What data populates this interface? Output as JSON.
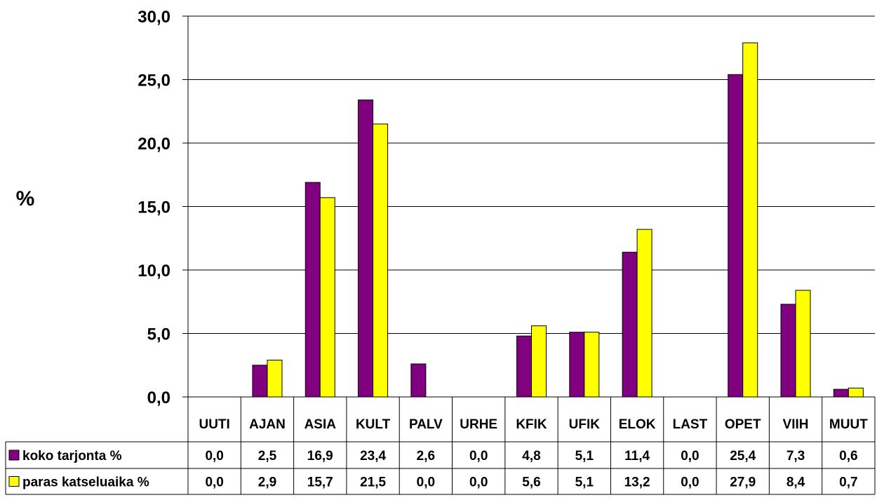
{
  "chart_data": {
    "type": "bar",
    "ylabel": "%",
    "ylim": [
      0,
      30
    ],
    "yticks": [
      "0,0",
      "5,0",
      "10,0",
      "15,0",
      "20,0",
      "25,0",
      "30,0"
    ],
    "ytick_values": [
      0,
      5,
      10,
      15,
      20,
      25,
      30
    ],
    "grid": true,
    "categories": [
      "UUTI",
      "AJAN",
      "ASIA",
      "KULT",
      "PALV",
      "URHE",
      "KFIK",
      "UFIK",
      "ELOK",
      "LAST",
      "OPET",
      "VIIH",
      "MUUT"
    ],
    "series": [
      {
        "name": "koko tarjonta %",
        "color": "#800080",
        "values": [
          0.0,
          2.5,
          16.9,
          23.4,
          2.6,
          0.0,
          4.8,
          5.1,
          11.4,
          0.0,
          25.4,
          7.3,
          0.6
        ],
        "labels": [
          "0,0",
          "2,5",
          "16,9",
          "23,4",
          "2,6",
          "0,0",
          "4,8",
          "5,1",
          "11,4",
          "0,0",
          "25,4",
          "7,3",
          "0,6"
        ]
      },
      {
        "name": "paras katseluaika %",
        "color": "#ffff00",
        "values": [
          0.0,
          2.9,
          15.7,
          21.5,
          0.0,
          0.0,
          5.6,
          5.1,
          13.2,
          0.0,
          27.9,
          8.4,
          0.7
        ],
        "labels": [
          "0,0",
          "2,9",
          "15,7",
          "21,5",
          "0,0",
          "0,0",
          "5,6",
          "5,1",
          "13,2",
          "0,0",
          "27,9",
          "8,4",
          "0,7"
        ]
      }
    ],
    "legend_placement": "data-table"
  }
}
